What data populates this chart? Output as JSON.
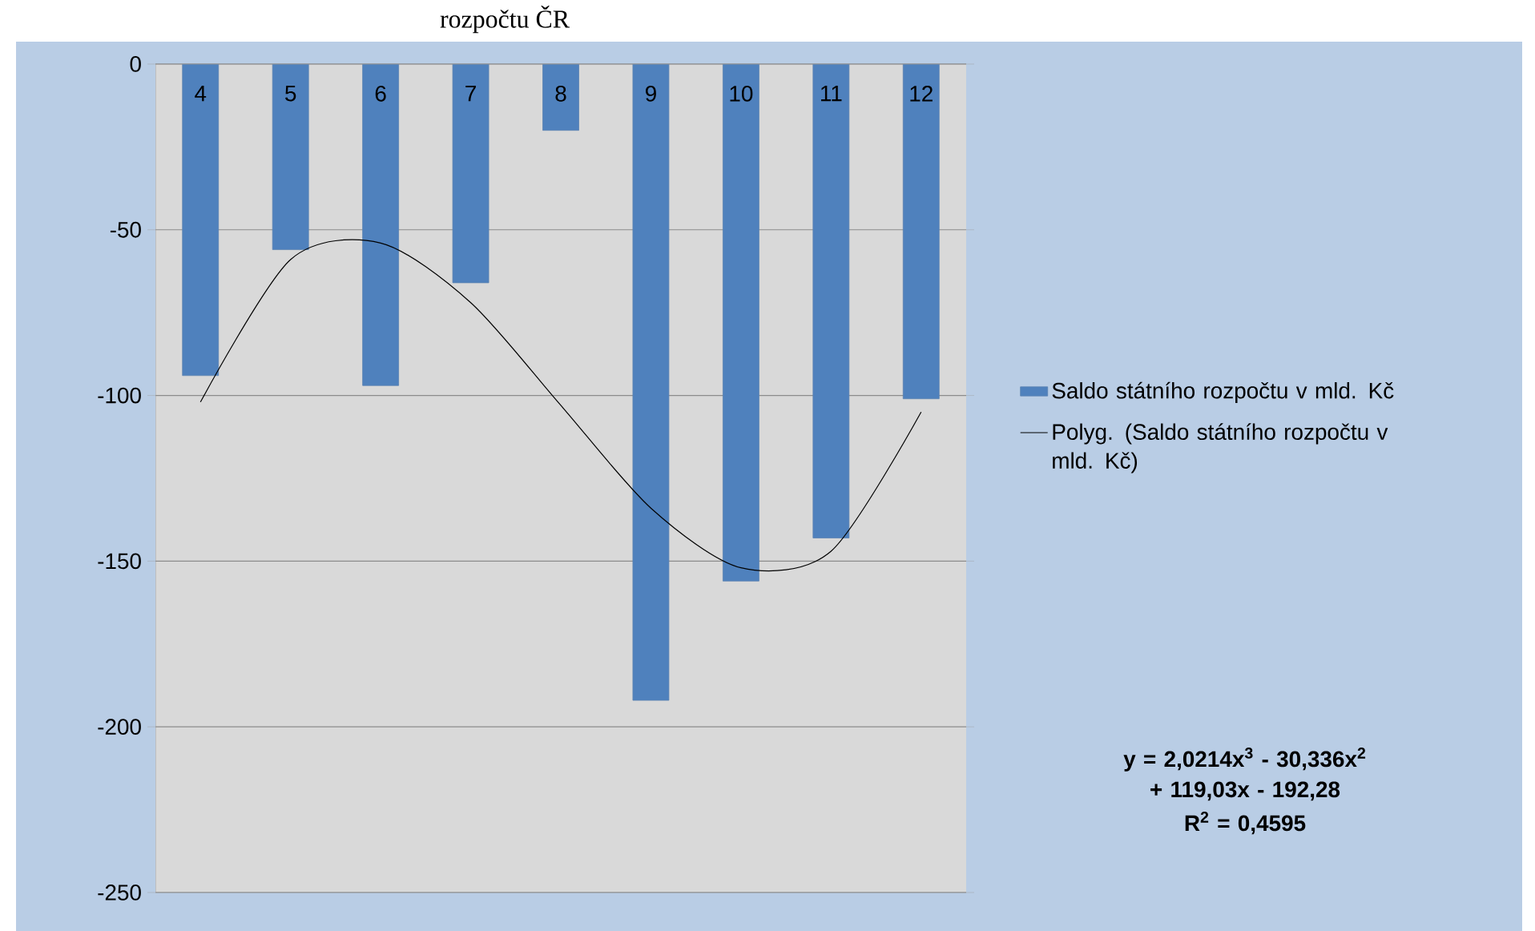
{
  "chart_data": {
    "type": "bar",
    "title": "rozpočtu ČR",
    "categories": [
      "4",
      "5",
      "6",
      "7",
      "8",
      "9",
      "10",
      "11",
      "12"
    ],
    "series": [
      {
        "name": "Saldo státního rozpočtu v mld. Kč",
        "type": "bar",
        "color": "#4f81bd",
        "values": [
          -94,
          -56,
          -97,
          -66,
          -20,
          -192,
          -156,
          -143,
          -101
        ]
      },
      {
        "name": "Polyg. (Saldo státního rozpočtu v mld. Kč)",
        "type": "line",
        "color": "#000000",
        "values": [
          -102,
          -59,
          -54,
          -72,
          -103,
          -134,
          -152,
          -147,
          -105
        ]
      }
    ],
    "ylim": [
      -250,
      0
    ],
    "yticks": [
      0,
      -50,
      -100,
      -150,
      -200,
      -250
    ],
    "grid": "y",
    "legend": "right",
    "marker": "none",
    "annotations": [
      "y = 2,0214x$^{3}$ - 30,336x$^{2}$ + 119,03x - 192,28",
      "R$^{2}$ = 0,4595"
    ]
  }
}
